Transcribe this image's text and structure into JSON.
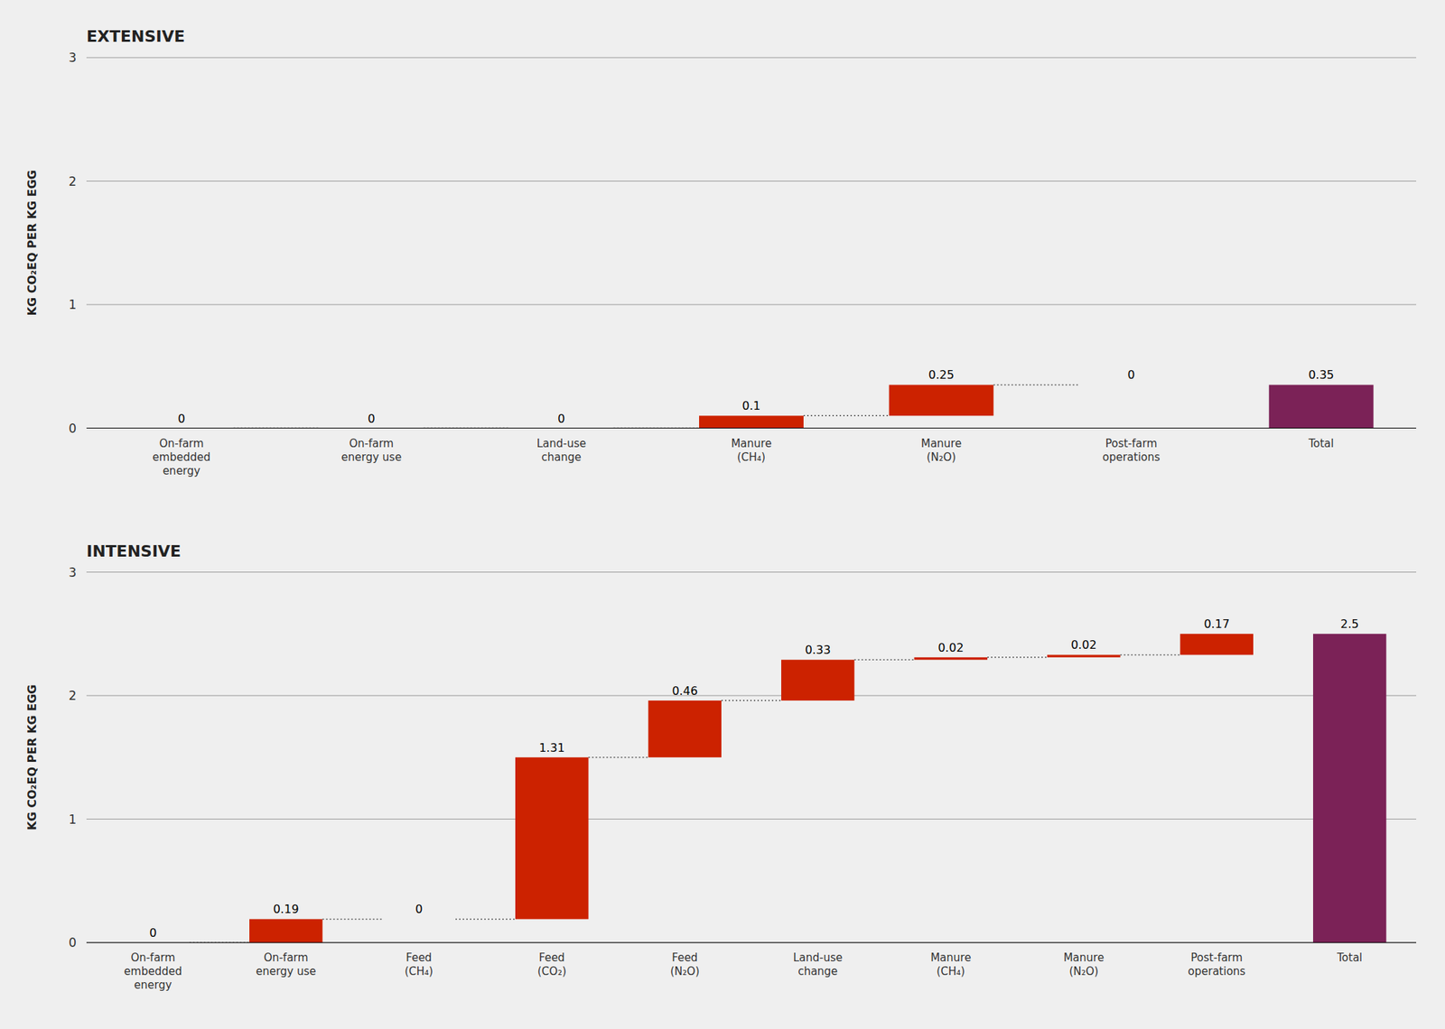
{
  "chart_data": [
    {
      "type": "waterfall",
      "title": "EXTENSIVE",
      "ylabel": "KG CO₂EQ PER KG EGG",
      "categories": [
        "On-farm\nembedded\nenergy",
        "On-farm\nenergy use",
        "Land-use\nchange",
        "Manure\n(CH₄)",
        "Manure\n(N₂O)",
        "Post-farm\noperations",
        "Total"
      ],
      "values": [
        0,
        0,
        0,
        0.1,
        0.25,
        0,
        0.35
      ],
      "colors": [
        "#cc2200",
        "#cc2200",
        "#cc2200",
        "#cc2200",
        "#cc2200",
        "#cc2200",
        "#7b2257"
      ],
      "ylim": [
        0,
        3
      ],
      "yticks": [
        0,
        1,
        2,
        3
      ],
      "grid": true,
      "data_labels": true
    },
    {
      "type": "waterfall",
      "title": "INTENSIVE",
      "ylabel": "KG CO₂EQ PER KG EGG",
      "categories": [
        "On-farm\nembedded\nenergy",
        "On-farm\nenergy use",
        "Feed\n(CH₄)",
        "Feed\n(CO₂)",
        "Feed\n(N₂O)",
        "Land-use\nchange",
        "Manure\n(CH₄)",
        "Manure\n(N₂O)",
        "Post-farm\noperations",
        "Total"
      ],
      "values": [
        0,
        0.19,
        0,
        1.31,
        0.46,
        0.33,
        0.02,
        0.02,
        0.17,
        2.5
      ],
      "colors": [
        "#cc2200",
        "#cc2200",
        "#cc2200",
        "#cc2200",
        "#cc2200",
        "#cc2200",
        "#cc2200",
        "#cc2200",
        "#cc2200",
        "#7b2257"
      ],
      "ylim": [
        0,
        3
      ],
      "yticks": [
        0,
        1,
        2,
        3
      ],
      "grid": true,
      "data_labels": true
    }
  ]
}
